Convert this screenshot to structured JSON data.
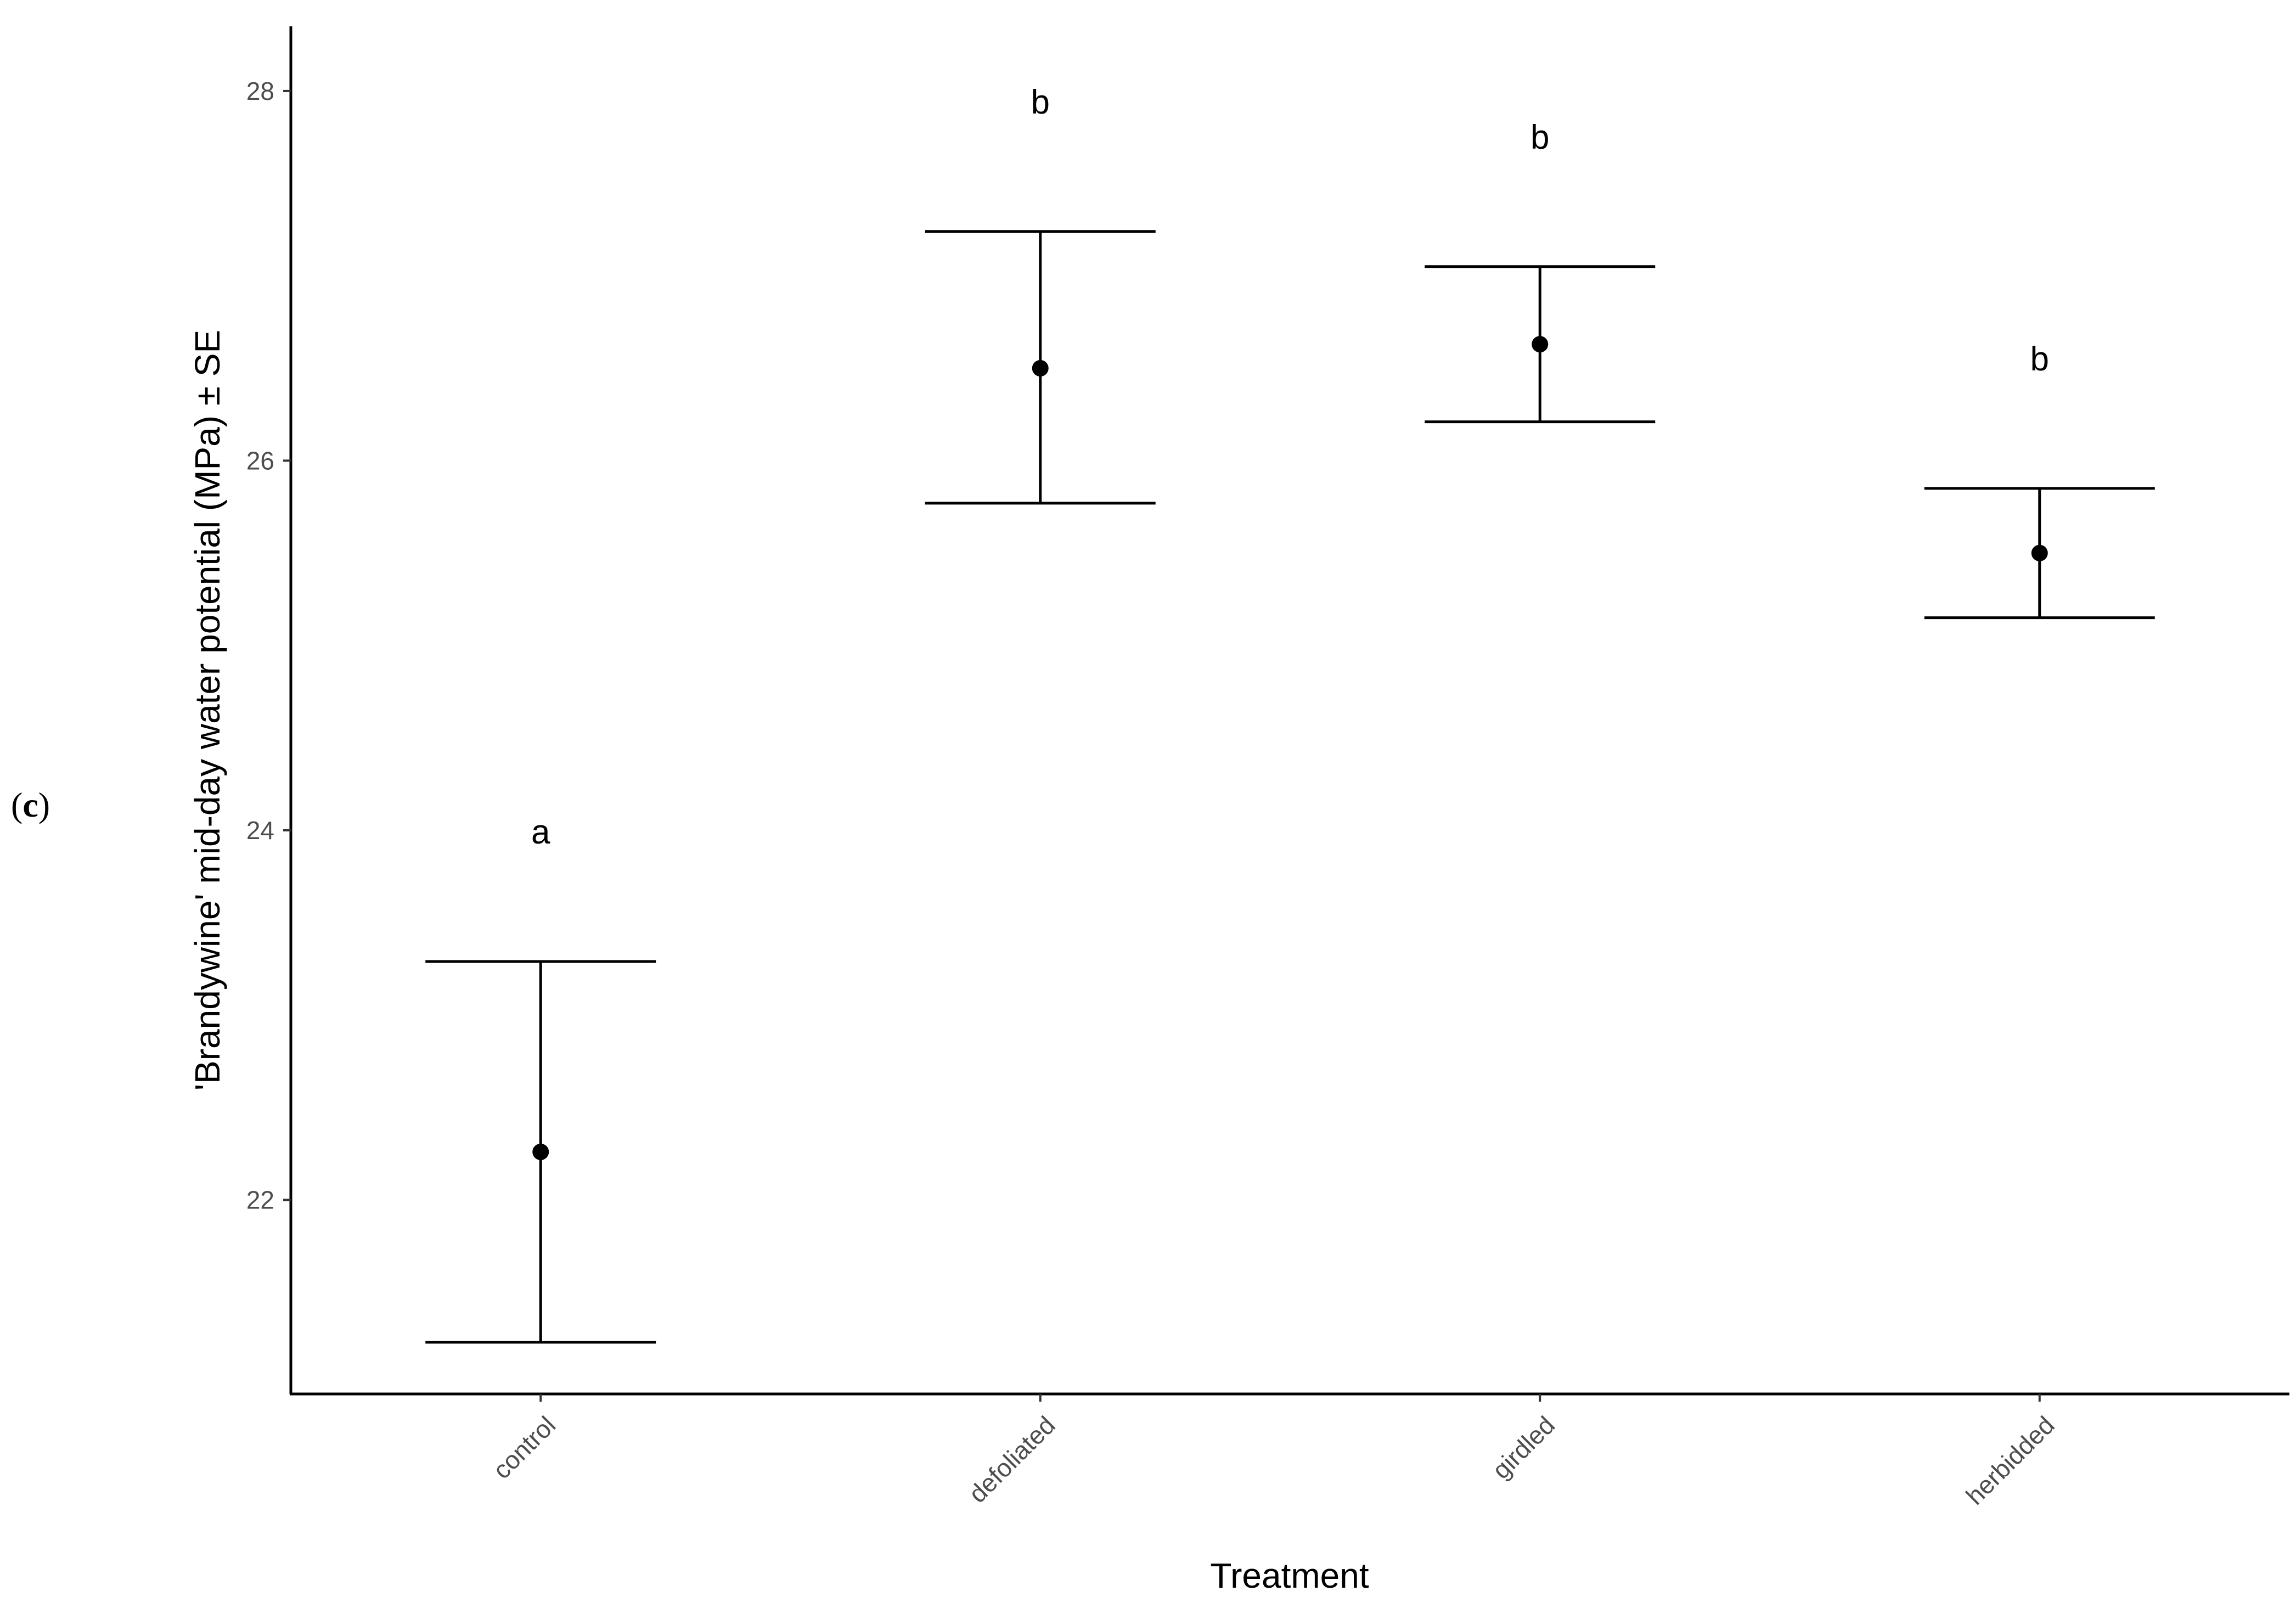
{
  "panel_label": {
    "open": "(",
    "letter": "c",
    "close": ")"
  },
  "chart_data": {
    "type": "scatter",
    "xlabel": "Treatment",
    "ylabel": "'Brandywine' mid-day water potential (MPa) ± SE",
    "categories": [
      "control",
      "defoliated",
      "girdled",
      "herbidded"
    ],
    "series": [
      {
        "mean": [
          22.26,
          26.5,
          26.63,
          25.5
        ],
        "se_lower": [
          21.23,
          25.77,
          26.21,
          25.15
        ],
        "se_upper": [
          23.29,
          27.24,
          27.05,
          25.85
        ],
        "significance_letters": [
          "a",
          "b",
          "b",
          "b"
        ]
      }
    ],
    "yticks": [
      22,
      24,
      26,
      28
    ],
    "ylim": [
      20.95,
      28.35
    ],
    "grid": false,
    "legend": "none",
    "colors": {
      "points": "#000000",
      "axis": "#000000",
      "tick_labels": "#4d4d4d"
    }
  }
}
